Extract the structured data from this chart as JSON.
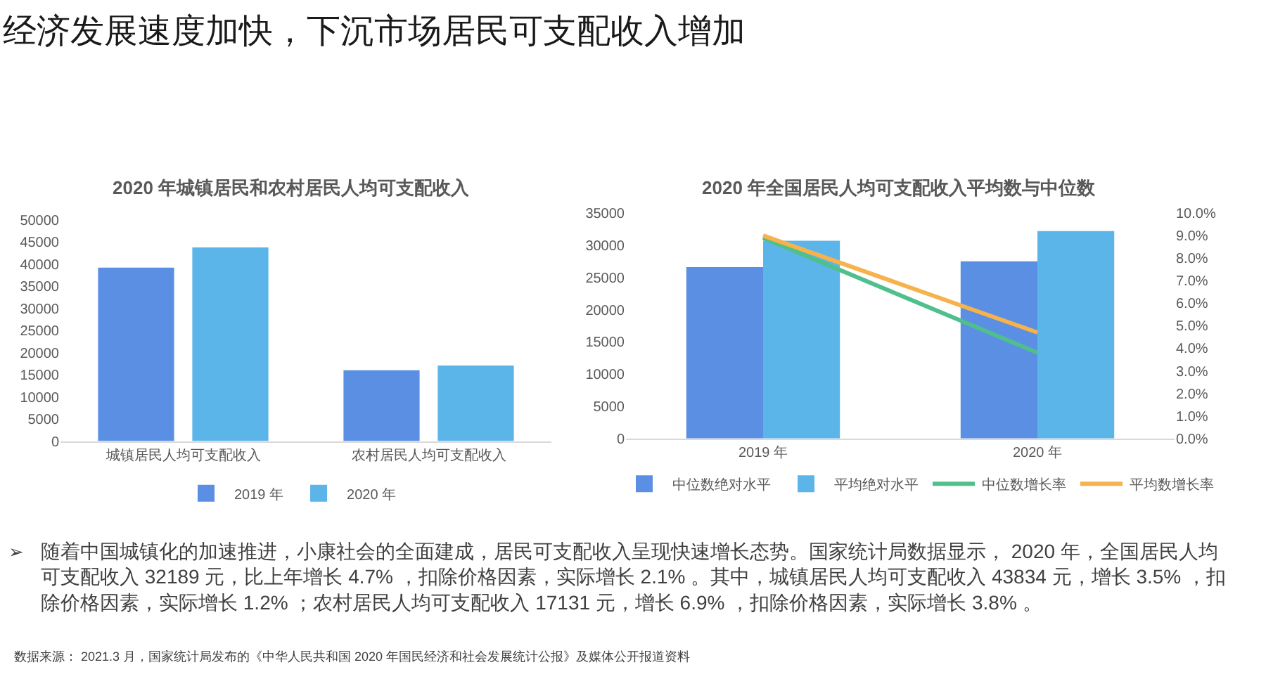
{
  "chart_data": [
    {
      "type": "other",
      "title": "经济发展速度加快，下沉市场居民可支配收入增加"
    },
    {
      "type": "bar",
      "title": "2020 年城镇居民和农村居民人均可支配收入",
      "categories": [
        "城镇居民人均可支配收入",
        "农村居民人均可支配收入"
      ],
      "series": [
        {
          "name": "2019 年",
          "color": "#5b8fe3",
          "values": [
            39200,
            16000
          ]
        },
        {
          "name": "2020 年",
          "color": "#5cb5e8",
          "values": [
            43800,
            17100
          ]
        }
      ],
      "ylim": [
        0,
        50000
      ],
      "yticks": [
        0,
        5000,
        10000,
        15000,
        20000,
        25000,
        30000,
        35000,
        40000,
        45000,
        50000
      ],
      "legend": "bottom"
    },
    {
      "type": "bar",
      "title": "2020 年全国居民人均可支配收入平均数与中位数",
      "categories": [
        "2019 年",
        "2020 年"
      ],
      "series": [
        {
          "name": "中位数绝对水平",
          "color": "#5b8fe3",
          "values": [
            26600,
            27500
          ]
        },
        {
          "name": "平均绝对水平",
          "color": "#5cb5e8",
          "values": [
            30700,
            32200
          ]
        },
        {
          "name": "中位数增长率",
          "type": "line",
          "axis": "y2",
          "color": "#4fc08d",
          "values": [
            8.9,
            3.8
          ]
        },
        {
          "name": "平均数增长率",
          "type": "line",
          "axis": "y2",
          "color": "#f6b24c",
          "values": [
            9.0,
            4.7
          ]
        }
      ],
      "ylim": [
        0,
        35000
      ],
      "yticks": [
        0,
        5000,
        10000,
        15000,
        20000,
        25000,
        30000,
        35000
      ],
      "y2lim": [
        0,
        10
      ],
      "y2ticks": [
        {
          "value": 0,
          "label": "0.0%"
        },
        {
          "value": 1,
          "label": "1.0%"
        },
        {
          "value": 2,
          "label": "2.0%"
        },
        {
          "value": 3,
          "label": "3.0%"
        },
        {
          "value": 4,
          "label": "4.0%"
        },
        {
          "value": 5,
          "label": "5.0%"
        },
        {
          "value": 6,
          "label": "6.0%"
        },
        {
          "value": 7,
          "label": "7.0%"
        },
        {
          "value": 8,
          "label": "8.0%"
        },
        {
          "value": 9,
          "label": "9.0%"
        },
        {
          "value": 10,
          "label": "10.0%"
        }
      ],
      "marker": "none",
      "line_style": "solid",
      "legend": "bottom"
    },
    {
      "type": "other",
      "annotations": [
        "➢",
        "随着中国城镇化的加速推进，小康社会的全面建成，居民可支配收入呈现快速增长态势。国家统计局数据显示， 2020 年，全国居民人均可支配收入 32189 元，比上年增长 4.7% ，扣除价格因素，实际增长 2.1% 。其中，城镇居民人均可支配收入 43834 元，增长 3.5% ，扣除价格因素，实际增长 1.2% ；农村居民人均可支配收入 17131 元，增长 6.9% ，扣除价格因素，实际增长 3.8% 。",
        "数据来源： 2021.3 月，国家统计局发布的《中华人民共和国 2020 年国民经济和社会发展统计公报》及媒体公开报道资料"
      ]
    }
  ]
}
